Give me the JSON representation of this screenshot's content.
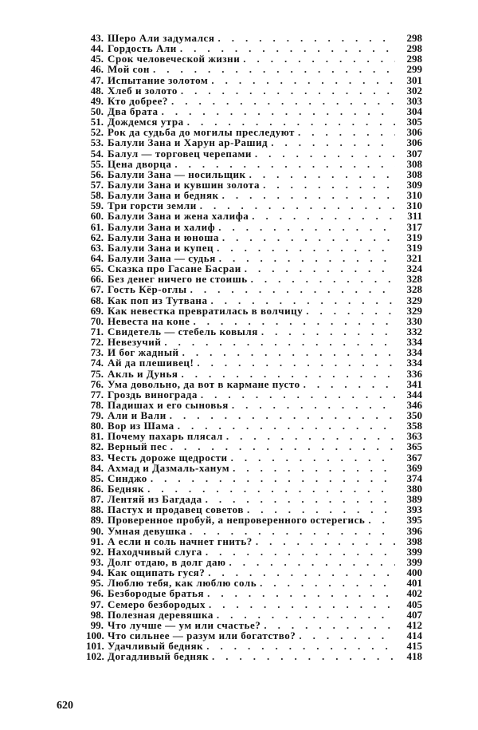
{
  "entries": [
    {
      "n": "43.",
      "title": "Шеро Али задумался",
      "page": "298"
    },
    {
      "n": "44.",
      "title": "Гордость Али",
      "page": "298"
    },
    {
      "n": "45.",
      "title": "Срок человеческой жизни",
      "page": "298"
    },
    {
      "n": "46.",
      "title": "Мой сон",
      "page": "299"
    },
    {
      "n": "47.",
      "title": "Испытание золотом",
      "page": "301"
    },
    {
      "n": "48.",
      "title": "Хлеб и золото",
      "page": "302"
    },
    {
      "n": "49.",
      "title": "Кто добрее?",
      "page": "303"
    },
    {
      "n": "50.",
      "title": "Два брата",
      "page": "304"
    },
    {
      "n": "51.",
      "title": "Дождемся утра",
      "page": "305"
    },
    {
      "n": "52.",
      "title": "Рок да судьба до могилы преследуют",
      "page": "306"
    },
    {
      "n": "53.",
      "title": "Балули Зана и Харун ар-Рашид",
      "page": "306"
    },
    {
      "n": "54.",
      "title": "Балул — торговец черепами",
      "page": "307"
    },
    {
      "n": "55.",
      "title": "Цена дворца",
      "page": "308"
    },
    {
      "n": "56.",
      "title": "Балули Зана — носильщик",
      "page": "308"
    },
    {
      "n": "57.",
      "title": "Балули Зана и кувшин золота",
      "page": "309"
    },
    {
      "n": "58.",
      "title": "Балули Зана и бедняк",
      "page": "310"
    },
    {
      "n": "59.",
      "title": "Три горсти земли",
      "page": "310"
    },
    {
      "n": "60.",
      "title": "Балули Зана и жена халифа",
      "page": "311"
    },
    {
      "n": "61.",
      "title": "Балули Зана и халиф",
      "page": "317"
    },
    {
      "n": "62.",
      "title": "Балули Зана и юноша",
      "page": "319"
    },
    {
      "n": "63.",
      "title": "Балули Зана и купец",
      "page": "319"
    },
    {
      "n": "64.",
      "title": "Балули Зана — судья",
      "page": "321"
    },
    {
      "n": "65.",
      "title": "Сказка про Гасане Басраи",
      "page": "324"
    },
    {
      "n": "66.",
      "title": "Без денег ничего не стоишь",
      "page": "328"
    },
    {
      "n": "67.",
      "title": "Гость Кёр-оглы",
      "page": "328"
    },
    {
      "n": "68.",
      "title": "Как поп из Тутвана",
      "page": "329"
    },
    {
      "n": "69.",
      "title": "Как невестка превратилась в волчицу",
      "page": "329"
    },
    {
      "n": "70.",
      "title": "Невеста на коне",
      "page": "330"
    },
    {
      "n": "71.",
      "title": "Свидетель — стебель ковыля",
      "page": "332"
    },
    {
      "n": "72.",
      "title": "Невезучий",
      "page": "334"
    },
    {
      "n": "73.",
      "title": "И бог жадный",
      "page": "334"
    },
    {
      "n": "74.",
      "title": "Ай да плешивец!",
      "page": "334"
    },
    {
      "n": "75.",
      "title": "Акль и Дунья",
      "page": "336"
    },
    {
      "n": "76.",
      "title": "Ума довольно, да вот в кармане пусто",
      "page": "341"
    },
    {
      "n": "77.",
      "title": "Гроздь винограда",
      "page": "344"
    },
    {
      "n": "78.",
      "title": "Падишах и его сыновья",
      "page": "346"
    },
    {
      "n": "79.",
      "title": "Али и Вали",
      "page": "350"
    },
    {
      "n": "80.",
      "title": "Вор из Шама",
      "page": "358"
    },
    {
      "n": "81.",
      "title": "Почему пахарь плясал",
      "page": "363"
    },
    {
      "n": "82.",
      "title": "Верный пес",
      "page": "365"
    },
    {
      "n": "83.",
      "title": "Честь дороже щедрости",
      "page": "367"
    },
    {
      "n": "84.",
      "title": "Ахмад и Дазмаль-ханум",
      "page": "369"
    },
    {
      "n": "85.",
      "title": "Синджо",
      "page": "374"
    },
    {
      "n": "86.",
      "title": "Бедняк",
      "page": "380"
    },
    {
      "n": "87.",
      "title": "Лентяй из Багдада",
      "page": "389"
    },
    {
      "n": "88.",
      "title": "Пастух и продавец советов",
      "page": "393"
    },
    {
      "n": "89.",
      "title": "Проверенное пробуй, а непроверенного остерегись",
      "page": "395"
    },
    {
      "n": "90.",
      "title": "Умная девушка",
      "page": "396"
    },
    {
      "n": "91.",
      "title": "А если и соль начнет гнить?",
      "page": "398"
    },
    {
      "n": "92.",
      "title": "Находчивый слуга",
      "page": "399"
    },
    {
      "n": "93.",
      "title": "Долг отдаю, в долг даю",
      "page": "399"
    },
    {
      "n": "94.",
      "title": "Как ощипать гуся?",
      "page": "400"
    },
    {
      "n": "95.",
      "title": "Люблю тебя, как люблю соль",
      "page": "401"
    },
    {
      "n": "96.",
      "title": "Безбородые братья",
      "page": "402"
    },
    {
      "n": "97.",
      "title": "Семеро безбородых",
      "page": "405"
    },
    {
      "n": "98.",
      "title": "Полезная деревяшка",
      "page": "407"
    },
    {
      "n": "99.",
      "title": "Что лучше — ум или счастье?",
      "page": "412"
    },
    {
      "n": "100.",
      "title": "Что сильнее — разум или богатство?",
      "page": "414"
    },
    {
      "n": "101.",
      "title": "Удачливый бедняк",
      "page": "415"
    },
    {
      "n": "102.",
      "title": "Догадливый бедняк",
      "page": "418"
    }
  ],
  "page_number": "620"
}
